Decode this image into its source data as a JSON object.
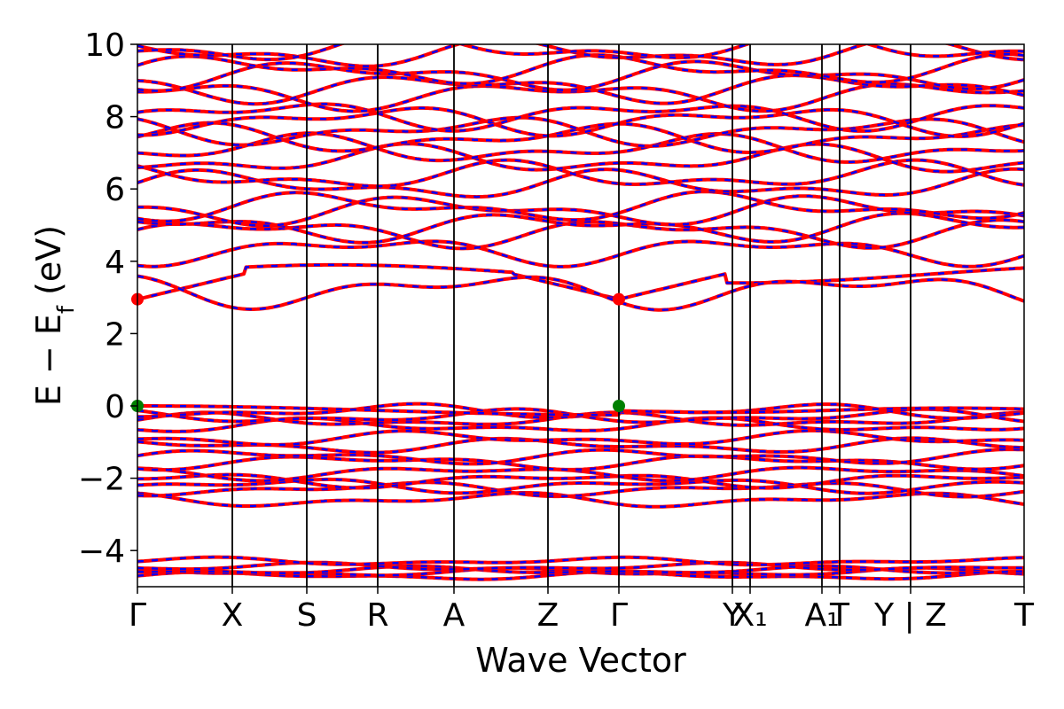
{
  "chart_data": {
    "type": "line",
    "title": "",
    "xlabel": "Wave Vector",
    "ylabel": "E − E_f (eV)",
    "ylabel_parts": {
      "main": "E − E",
      "sub": "f",
      "unit": " (eV)"
    },
    "ylim": [
      -5,
      10
    ],
    "yticks": [
      -4,
      -2,
      0,
      2,
      4,
      6,
      8,
      10
    ],
    "ytick_labels": [
      "−4",
      "−2",
      "0",
      "2",
      "4",
      "6",
      "8",
      "10"
    ],
    "kpath": [
      {
        "label": "Γ",
        "x": 0.0
      },
      {
        "label": "X",
        "x": 0.107
      },
      {
        "label": "S",
        "x": 0.191
      },
      {
        "label": "R",
        "x": 0.271
      },
      {
        "label": "A",
        "x": 0.357
      },
      {
        "label": "Z",
        "x": 0.463
      },
      {
        "label": "Γ",
        "x": 0.543
      },
      {
        "label": "Y",
        "x": 0.671
      },
      {
        "label": "X₁",
        "x": 0.691
      },
      {
        "label": "A₁",
        "x": 0.772
      },
      {
        "label": "T",
        "x": 0.792
      },
      {
        "label": "Y | Z",
        "x": 0.872
      },
      {
        "label": "T",
        "x": 1.0
      }
    ],
    "break_x": 0.872,
    "grid": false,
    "series_colors": {
      "spin_up": "#ff0000",
      "spin_down": "#0000ff"
    },
    "markers": [
      {
        "kind": "CBM",
        "x": 0.0,
        "y": 2.95,
        "color": "#ff0000"
      },
      {
        "kind": "CBM",
        "x": 0.543,
        "y": 2.95,
        "color": "#ff0000"
      },
      {
        "kind": "VBM",
        "x": 0.0,
        "y": 0.0,
        "color": "#008000"
      },
      {
        "kind": "VBM",
        "x": 0.543,
        "y": 0.0,
        "color": "#008000"
      }
    ],
    "bands_at_Gamma": [
      -4.7,
      -4.6,
      -4.55,
      -4.45,
      -4.3,
      -2.6,
      -2.3,
      -2.2,
      -2.05,
      -1.85,
      -1.55,
      -1.4,
      -1.1,
      -0.9,
      -0.55,
      -0.4,
      -0.3,
      -0.15,
      0.0,
      2.95,
      3.2,
      4.3,
      4.8,
      4.95,
      5.4,
      5.5,
      6.1,
      6.35,
      6.8,
      7.1,
      7.4,
      7.6,
      7.9,
      8.05,
      8.6,
      8.8,
      9.15,
      9.3,
      9.75,
      9.9
    ]
  }
}
